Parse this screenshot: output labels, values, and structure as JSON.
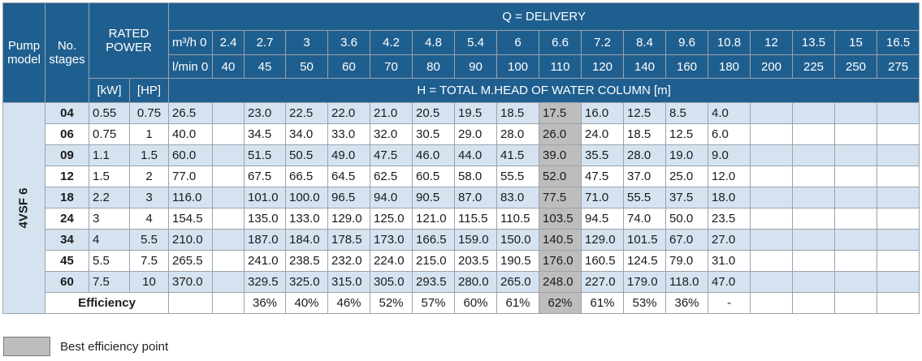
{
  "header": {
    "pump_model": [
      "Pump",
      "model"
    ],
    "no_stages": [
      "No.",
      "stages"
    ],
    "rated_power": [
      "RATED",
      "POWER"
    ],
    "delivery": "Q = DELIVERY",
    "unit_m3h": "m³/h 0",
    "unit_lmin": "l/min 0",
    "m3h_values": [
      "2.4",
      "2.7",
      "3",
      "3.6",
      "4.2",
      "4.8",
      "5.4",
      "6",
      "6.6",
      "7.2",
      "8.4",
      "9.6",
      "10.8",
      "12",
      "13.5",
      "15",
      "16.5"
    ],
    "lmin_values": [
      "40",
      "45",
      "50",
      "60",
      "70",
      "80",
      "90",
      "100",
      "110",
      "120",
      "140",
      "160",
      "180",
      "200",
      "225",
      "250",
      "275"
    ],
    "kw": "[kW]",
    "hp": "[HP]",
    "head": "H = TOTAL M.HEAD OF WATER COLUMN [m]"
  },
  "model": "4VSF 6",
  "rows": [
    {
      "stage": "04",
      "kw": "0.55",
      "hp": "0.75",
      "h0": "26.5",
      "vals": [
        "",
        "23.0",
        "22.5",
        "22.0",
        "21.0",
        "20.5",
        "19.5",
        "18.5",
        "17.5",
        "16.0",
        "12.5",
        "8.5",
        "4.0",
        "",
        "",
        "",
        ""
      ]
    },
    {
      "stage": "06",
      "kw": "0.75",
      "hp": "1",
      "h0": "40.0",
      "vals": [
        "",
        "34.5",
        "34.0",
        "33.0",
        "32.0",
        "30.5",
        "29.0",
        "28.0",
        "26.0",
        "24.0",
        "18.5",
        "12.5",
        "6.0",
        "",
        "",
        "",
        ""
      ]
    },
    {
      "stage": "09",
      "kw": "1.1",
      "hp": "1.5",
      "h0": "60.0",
      "vals": [
        "",
        "51.5",
        "50.5",
        "49.0",
        "47.5",
        "46.0",
        "44.0",
        "41.5",
        "39.0",
        "35.5",
        "28.0",
        "19.0",
        "9.0",
        "",
        "",
        "",
        ""
      ]
    },
    {
      "stage": "12",
      "kw": "1.5",
      "hp": "2",
      "h0": "77.0",
      "vals": [
        "",
        "67.5",
        "66.5",
        "64.5",
        "62.5",
        "60.5",
        "58.0",
        "55.5",
        "52.0",
        "47.5",
        "37.0",
        "25.0",
        "12.0",
        "",
        "",
        "",
        ""
      ]
    },
    {
      "stage": "18",
      "kw": "2.2",
      "hp": "3",
      "h0": "116.0",
      "vals": [
        "",
        "101.0",
        "100.0",
        "96.5",
        "94.0",
        "90.5",
        "87.0",
        "83.0",
        "77.5",
        "71.0",
        "55.5",
        "37.5",
        "18.0",
        "",
        "",
        "",
        ""
      ]
    },
    {
      "stage": "24",
      "kw": "3",
      "hp": "4",
      "h0": "154.5",
      "vals": [
        "",
        "135.0",
        "133.0",
        "129.0",
        "125.0",
        "121.0",
        "115.5",
        "110.5",
        "103.5",
        "94.5",
        "74.0",
        "50.0",
        "23.5",
        "",
        "",
        "",
        ""
      ]
    },
    {
      "stage": "34",
      "kw": "4",
      "hp": "5.5",
      "h0": "210.0",
      "vals": [
        "",
        "187.0",
        "184.0",
        "178.5",
        "173.0",
        "166.5",
        "159.0",
        "150.0",
        "140.5",
        "129.0",
        "101.5",
        "67.0",
        "27.0",
        "",
        "",
        "",
        ""
      ]
    },
    {
      "stage": "45",
      "kw": "5.5",
      "hp": "7.5",
      "h0": "265.5",
      "vals": [
        "",
        "241.0",
        "238.5",
        "232.0",
        "224.0",
        "215.0",
        "203.5",
        "190.5",
        "176.0",
        "160.5",
        "124.5",
        "79.0",
        "31.0",
        "",
        "",
        "",
        ""
      ]
    },
    {
      "stage": "60",
      "kw": "7.5",
      "hp": "10",
      "h0": "370.0",
      "vals": [
        "",
        "329.5",
        "325.0",
        "315.0",
        "305.0",
        "293.5",
        "280.0",
        "265.0",
        "248.0",
        "227.0",
        "179.0",
        "118.0",
        "47.0",
        "",
        "",
        "",
        ""
      ]
    }
  ],
  "efficiency": {
    "label": "Efficiency",
    "h0": "",
    "vals": [
      "",
      "36%",
      "40%",
      "46%",
      "52%",
      "57%",
      "60%",
      "61%",
      "62%",
      "61%",
      "53%",
      "36%",
      "-",
      "",
      "",
      "",
      ""
    ]
  },
  "best_column_index": 8,
  "legend": "Best efficiency point",
  "colors": {
    "header_bg": "#1f5f8f",
    "row_shade": "#d5e3f1",
    "best": "#bdbdbd"
  }
}
